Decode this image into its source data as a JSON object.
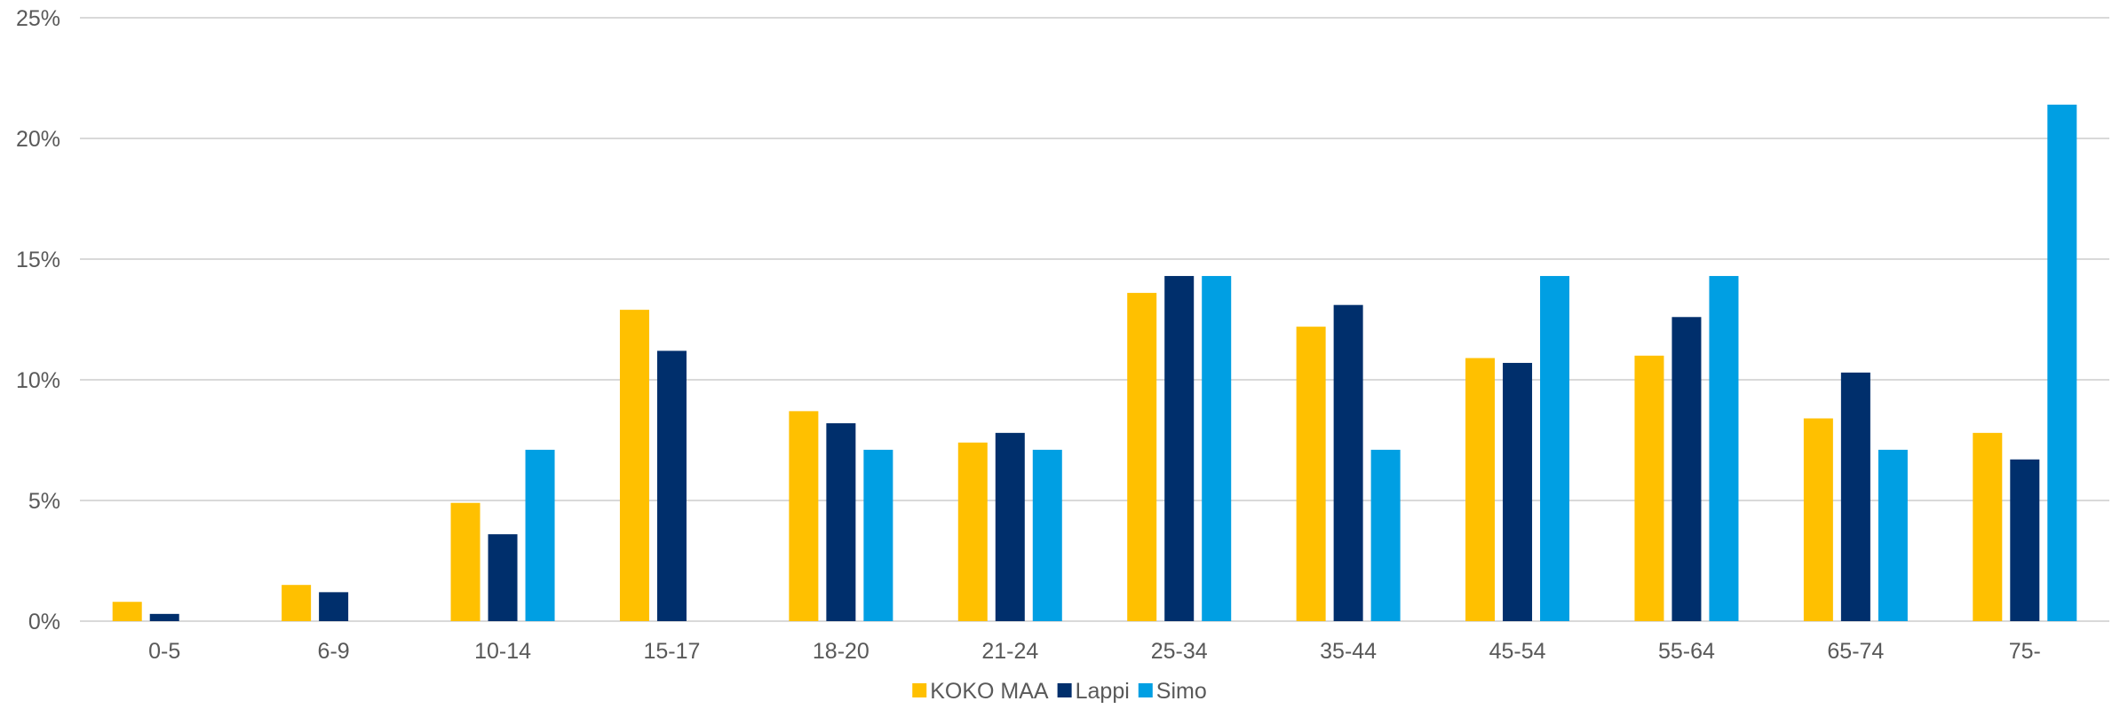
{
  "chart_data": {
    "type": "bar",
    "title": "",
    "xlabel": "",
    "ylabel": "",
    "categories": [
      "0-5",
      "6-9",
      "10-14",
      "15-17",
      "18-20",
      "21-24",
      "25-34",
      "35-44",
      "45-54",
      "55-64",
      "65-74",
      "75-"
    ],
    "series": [
      {
        "name": "KOKO MAA",
        "color": "#FFC000",
        "values": [
          0.8,
          1.5,
          4.9,
          12.9,
          8.7,
          7.4,
          13.6,
          12.2,
          10.9,
          11.0,
          8.4,
          7.8
        ]
      },
      {
        "name": "Lappi",
        "color": "#002F6C",
        "values": [
          0.3,
          1.2,
          3.6,
          11.2,
          8.2,
          7.8,
          14.3,
          13.1,
          10.7,
          12.6,
          10.3,
          6.7
        ]
      },
      {
        "name": "Simo",
        "color": "#009FE3",
        "values": [
          0,
          0,
          7.1,
          0,
          7.1,
          7.1,
          14.3,
          7.1,
          14.3,
          14.3,
          7.1,
          21.4
        ]
      }
    ],
    "ylim": [
      0,
      25
    ],
    "yticks": [
      0,
      5,
      10,
      15,
      20,
      25
    ],
    "ytick_labels": [
      "0%",
      "5%",
      "10%",
      "15%",
      "20%",
      "25%"
    ],
    "grid": true,
    "legend_position": "bottom-center"
  }
}
